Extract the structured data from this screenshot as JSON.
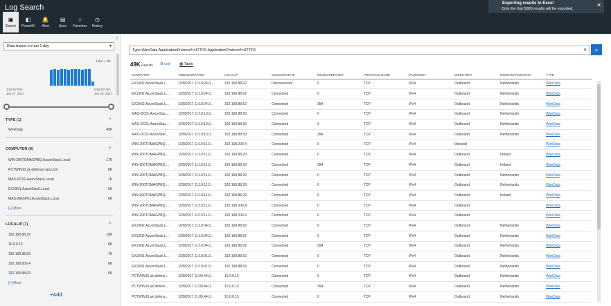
{
  "header": {
    "title": "Log Search",
    "toolbar": [
      {
        "label": "Export",
        "icon": "export-icon",
        "glyph": "▣"
      },
      {
        "label": "PowerBI",
        "icon": "powerbi-icon",
        "glyph": "◧"
      },
      {
        "label": "Alert",
        "icon": "bell-icon",
        "glyph": "🔔"
      },
      {
        "label": "Save",
        "icon": "save-icon",
        "glyph": "▤"
      },
      {
        "label": "Favorites",
        "icon": "star-icon",
        "glyph": "☆"
      },
      {
        "label": "History",
        "icon": "history-icon",
        "glyph": "◷"
      }
    ]
  },
  "toast": {
    "title": "Exporting results to Excel",
    "message": "Only the first 5000 results will be exported.",
    "close": "✕"
  },
  "left": {
    "collapse": "‹",
    "time_range": "Data based on last 1 day",
    "legend": "1 bar = 1hr",
    "histogram": [
      0.82,
      0.84,
      0.83,
      0.85,
      0.84,
      0.83,
      0.86,
      0.84,
      0.85,
      0.83,
      0.84,
      0.85,
      0.2
    ],
    "start_time": "2:59:07 PM",
    "start_date": "Jan 27, 2017",
    "end_time": "8:59:07 AM",
    "end_date": "Jan 28, 2017",
    "type_facet": {
      "title": "TYPE (1)",
      "items": [
        {
          "label": "WireData",
          "count": "49K"
        }
      ]
    },
    "computer_facet": {
      "title": "COMPUTER (8)",
      "items": [
        {
          "label": "WIN-206TOMAGPBQ.AzureStack.Local",
          "count": "17K"
        },
        {
          "label": "PCTWIN10.uk.defense-ops.com",
          "count": "8K"
        },
        {
          "label": "MAS-DC01.AzureStack.Local",
          "count": "7K"
        },
        {
          "label": "EX10N1.AzureStack.Local",
          "count": "6K"
        },
        {
          "label": "MAS-WASP01.AzureStack.Local",
          "count": "6K"
        }
      ],
      "more": "[+] More"
    },
    "localip_facet": {
      "title": "LOCALIP (7)",
      "items": [
        {
          "label": "192.168.88.29",
          "count": "10K"
        },
        {
          "label": "10.0.0.15",
          "count": "8K"
        },
        {
          "label": "192.168.88.59",
          "count": "7K"
        },
        {
          "label": "192.168.200.4",
          "count": "6K"
        },
        {
          "label": "192.168.88.63",
          "count": "6K"
        }
      ],
      "more": "[+] More"
    },
    "add": "+Add"
  },
  "search": {
    "query": "Type:WireData ApplicationProtocol!=HTTPS ApplicationProtocol!=HTTPS",
    "clear": "✕",
    "button_icon": "⌕"
  },
  "results": {
    "count": "49K",
    "label": "Results",
    "list_tab": "≣ List",
    "table_tab": "▦ Table"
  },
  "table": {
    "columns": [
      "COMPUTER",
      "TIMEGENERATED",
      "LOCALIP",
      "SESSIONSTATE",
      "RECEIVEDBYTES",
      "PROTOCOLNAME",
      "IPVERSION",
      "DIRECTION",
      "REMOTEIPCOUNTRY",
      "TYPE"
    ],
    "rows": [
      [
        "EX10N2.AzureStack.L...",
        "1/28/2017 11:10:24.0...",
        "192.168.88.62",
        "Disconnected",
        "0",
        "TCP",
        "IPv4",
        "Outbound",
        "Netherlands",
        "WireData"
      ],
      [
        "EX10N2.AzureStack.L...",
        "1/28/2017 11:10:24.0...",
        "192.168.88.62",
        "Connected",
        "0",
        "TCP",
        "IPv4",
        "Outbound",
        "Netherlands",
        "WireData"
      ],
      [
        "EX10N2.AzureStack.L...",
        "1/28/2017 11:10:24.0...",
        "192.168.88.62",
        "Connected",
        "394",
        "TCP",
        "IPv4",
        "Outbound",
        "Netherlands",
        "WireData"
      ],
      [
        "MAS-DC01.AzureStac...",
        "1/28/2017 11:10:13.0...",
        "192.168.88.59",
        "Connected",
        "0",
        "TCP",
        "IPv4",
        "Outbound",
        "Netherlands",
        "WireData"
      ],
      [
        "MAS-DC01.AzureStac...",
        "1/28/2017 11:10:13.0...",
        "192.168.88.59",
        "Connected",
        "0",
        "TCP",
        "IPv4",
        "Outbound",
        "Netherlands",
        "WireData"
      ],
      [
        "MAS-DC01.AzureStac...",
        "1/28/2017 11:10:13.0...",
        "192.168.88.59",
        "Connected",
        "394",
        "TCP",
        "IPv4",
        "Outbound",
        "Netherlands",
        "WireData"
      ],
      [
        "WIN-206TOMAGPBQ....",
        "1/28/2017 11:10:11.0...",
        "192.168.200.4",
        "Connected",
        "0",
        "TCP",
        "IPv4",
        "Inbound",
        "",
        "WireData"
      ],
      [
        "WIN-206TOMAGPBQ....",
        "1/28/2017 11:10:11.0...",
        "192.168.88.29",
        "Connected",
        "0",
        "TCP",
        "IPv4",
        "Outbound",
        "Ireland",
        "WireData"
      ],
      [
        "WIN-206TOMAGPBQ....",
        "1/28/2017 11:10:11.0...",
        "192.168.88.29",
        "Connected",
        "394",
        "TCP",
        "IPv4",
        "Outbound",
        "Ireland",
        "WireData"
      ],
      [
        "WIN-206TOMAGPBQ....",
        "1/28/2017 11:10:11.0...",
        "192.168.88.29",
        "Connected",
        "0",
        "TCP",
        "IPv4",
        "Outbound",
        "Netherlands",
        "WireData"
      ],
      [
        "WIN-206TOMAGPBQ....",
        "1/28/2017 11:10:11.0...",
        "192.168.88.29",
        "Connected",
        "0",
        "TCP",
        "IPv4",
        "Outbound",
        "Netherlands",
        "WireData"
      ],
      [
        "WIN-206TOMAGPBQ....",
        "1/28/2017 11:10:11.0...",
        "192.168.88.29",
        "Connected",
        "0",
        "TCP",
        "IPv4",
        "Outbound",
        "Ireland",
        "WireData"
      ],
      [
        "WIN-206TOMAGPBQ....",
        "1/28/2017 11:10:11.0...",
        "192.168.200.4",
        "Connected",
        "0",
        "TCP",
        "IPv4",
        "Outbound",
        "",
        "WireData"
      ],
      [
        "WIN-206TOMAGPBQ....",
        "1/28/2017 11:10:11.0...",
        "192.168.200.4",
        "Connected",
        "0",
        "TCP",
        "IPv4",
        "Outbound",
        "",
        "WireData"
      ],
      [
        "EX10N2.AzureStack.L...",
        "1/28/2017 11:10:04.0...",
        "192.168.88.62",
        "Connected",
        "0",
        "TCP",
        "IPv4",
        "Outbound",
        "Netherlands",
        "WireData"
      ],
      [
        "EX10N2.AzureStack.L...",
        "1/28/2017 11:10:04.0...",
        "192.168.88.62",
        "Connected",
        "0",
        "TCP",
        "IPv4",
        "Outbound",
        "Netherlands",
        "WireData"
      ],
      [
        "EX10N2.AzureStack.L...",
        "1/28/2017 11:10:04.0...",
        "192.168.88.62",
        "Connected",
        "394",
        "TCP",
        "IPv4",
        "Outbound",
        "Netherlands",
        "WireData"
      ],
      [
        "EX10N1.AzureStack.L...",
        "1/28/2017 11:10:01.0...",
        "192.168.88.63",
        "Connected",
        "0",
        "TCP",
        "IPv4",
        "Outbound",
        "Netherlands",
        "WireData"
      ],
      [
        "EX10N1.AzureStack.L...",
        "1/28/2017 11:10:01.0...",
        "192.168.88.63",
        "Connected",
        "0",
        "TCP",
        "IPv4",
        "Outbound",
        "Netherlands",
        "WireData"
      ],
      [
        "PCTWIN10.uk.defens...",
        "1/28/2017 11:09:44.0...",
        "10.0.0.15",
        "Connected",
        "0",
        "TCP",
        "IPv4",
        "Outbound",
        "Netherlands",
        "WireData"
      ],
      [
        "PCTWIN10.uk.defens...",
        "1/28/2017 11:09:44.0...",
        "10.0.0.15",
        "Connected",
        "394",
        "TCP",
        "IPv4",
        "Outbound",
        "Netherlands",
        "WireData"
      ],
      [
        "PCTWIN10.uk.defens...",
        "1/28/2017 11:09:44.0...",
        "10.0.0.15",
        "Connected",
        "0",
        "TCP",
        "IPv4",
        "Outbound",
        "Netherlands",
        "WireData"
      ]
    ]
  }
}
